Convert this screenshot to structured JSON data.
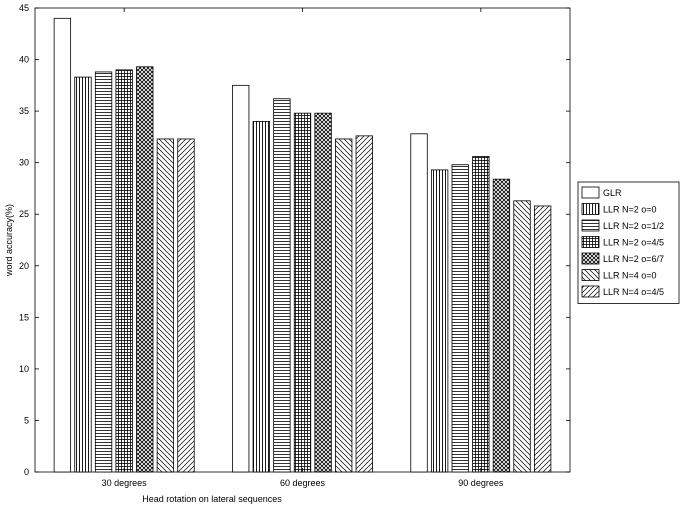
{
  "chart_data": {
    "type": "bar",
    "xlabel": "Head rotation on lateral sequences",
    "ylabel": "word accuracy(%)",
    "ylim": [
      0,
      45
    ],
    "yticks": [
      0,
      5,
      10,
      15,
      20,
      25,
      30,
      35,
      40,
      45
    ],
    "categories": [
      "30 degrees",
      "60 degrees",
      "90 degrees"
    ],
    "legend_position": "right",
    "series": [
      {
        "name": "GLR",
        "pattern": "none",
        "values": [
          44.0,
          37.5,
          32.8
        ]
      },
      {
        "name": "LLR N=2 o=0",
        "pattern": "vertical",
        "values": [
          38.3,
          34.0,
          29.3
        ]
      },
      {
        "name": "LLR N=2 o=1/2",
        "pattern": "horizontal",
        "values": [
          38.8,
          36.2,
          29.8
        ]
      },
      {
        "name": "LLR N=2 o=4/5",
        "pattern": "grid",
        "values": [
          39.0,
          34.8,
          30.6
        ]
      },
      {
        "name": "LLR N=2 o=6/7",
        "pattern": "crosshatch",
        "values": [
          39.3,
          34.8,
          28.4
        ]
      },
      {
        "name": "LLR N=4 o=0",
        "pattern": "diag-back",
        "values": [
          32.3,
          32.3,
          26.3
        ]
      },
      {
        "name": "LLR N=4 o=4/5",
        "pattern": "diag-fwd",
        "values": [
          32.3,
          32.6,
          25.8
        ]
      }
    ]
  }
}
